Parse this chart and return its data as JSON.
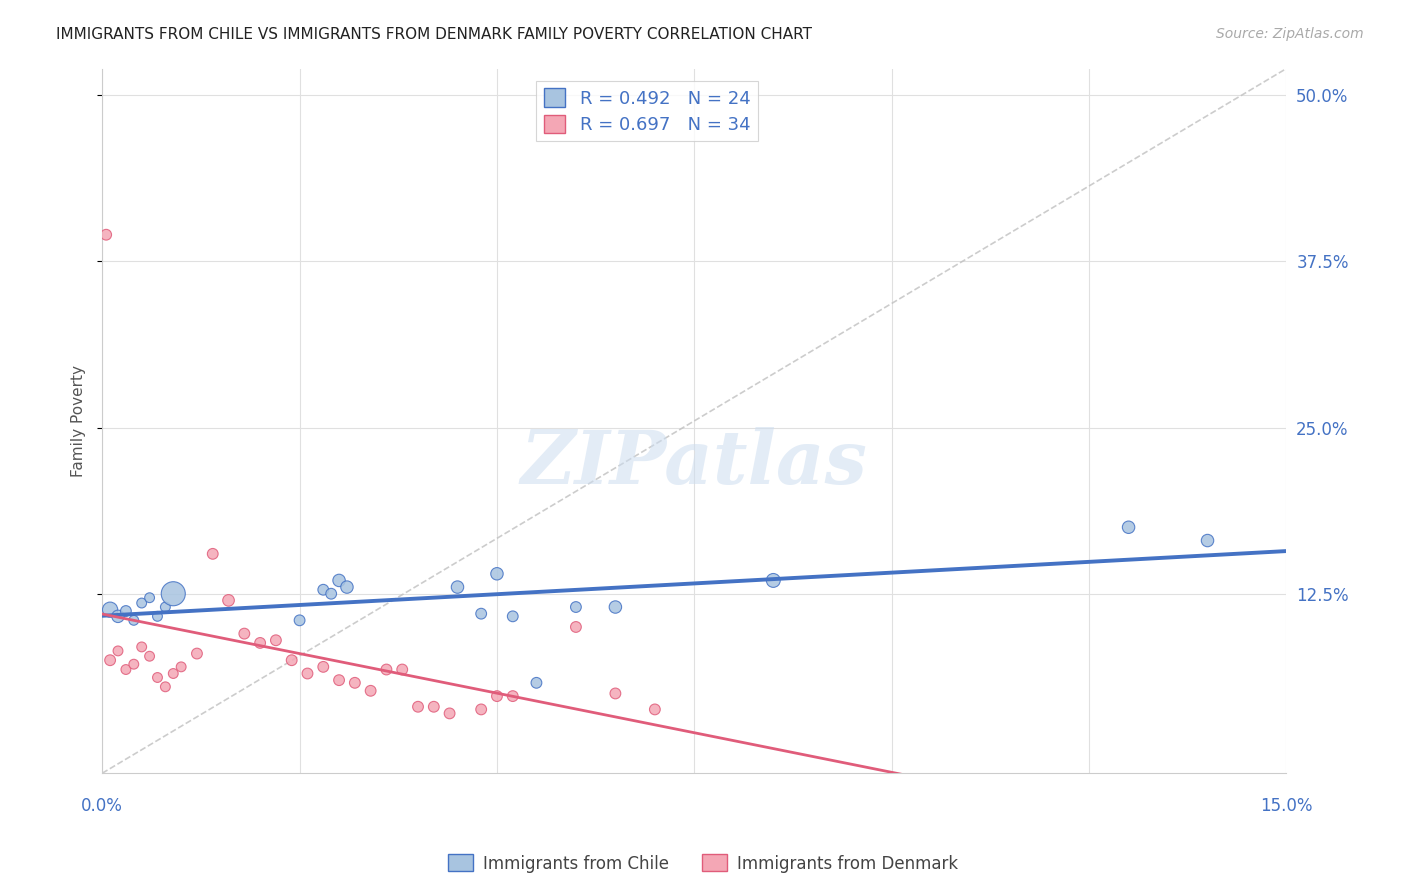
{
  "title": "IMMIGRANTS FROM CHILE VS IMMIGRANTS FROM DENMARK FAMILY POVERTY CORRELATION CHART",
  "source": "Source: ZipAtlas.com",
  "ylabel": "Family Poverty",
  "x_min": 0.0,
  "x_max": 0.15,
  "y_min": -0.01,
  "y_max": 0.52,
  "legend_chile": "R = 0.492   N = 24",
  "legend_denmark": "R = 0.697   N = 34",
  "chile_color": "#a8c4e0",
  "chile_line_color": "#4472c4",
  "denmark_color": "#f4a7b5",
  "denmark_line_color": "#e05c7a",
  "diagonal_color": "#c0c0c0",
  "chile_points": [
    [
      0.001,
      0.113
    ],
    [
      0.002,
      0.108
    ],
    [
      0.003,
      0.112
    ],
    [
      0.004,
      0.105
    ],
    [
      0.005,
      0.118
    ],
    [
      0.006,
      0.122
    ],
    [
      0.007,
      0.108
    ],
    [
      0.008,
      0.115
    ],
    [
      0.009,
      0.125
    ],
    [
      0.025,
      0.105
    ],
    [
      0.028,
      0.128
    ],
    [
      0.029,
      0.125
    ],
    [
      0.03,
      0.135
    ],
    [
      0.031,
      0.13
    ],
    [
      0.045,
      0.13
    ],
    [
      0.048,
      0.11
    ],
    [
      0.05,
      0.14
    ],
    [
      0.052,
      0.108
    ],
    [
      0.055,
      0.058
    ],
    [
      0.06,
      0.115
    ],
    [
      0.065,
      0.115
    ],
    [
      0.085,
      0.135
    ],
    [
      0.13,
      0.175
    ],
    [
      0.14,
      0.165
    ]
  ],
  "chile_sizes": [
    120,
    80,
    60,
    50,
    50,
    50,
    50,
    50,
    300,
    60,
    60,
    60,
    80,
    80,
    80,
    60,
    80,
    60,
    60,
    60,
    80,
    100,
    80,
    80
  ],
  "denmark_points": [
    [
      0.001,
      0.075
    ],
    [
      0.002,
      0.082
    ],
    [
      0.003,
      0.068
    ],
    [
      0.004,
      0.072
    ],
    [
      0.005,
      0.085
    ],
    [
      0.006,
      0.078
    ],
    [
      0.007,
      0.062
    ],
    [
      0.008,
      0.055
    ],
    [
      0.009,
      0.065
    ],
    [
      0.01,
      0.07
    ],
    [
      0.012,
      0.08
    ],
    [
      0.014,
      0.155
    ],
    [
      0.016,
      0.12
    ],
    [
      0.018,
      0.095
    ],
    [
      0.02,
      0.088
    ],
    [
      0.022,
      0.09
    ],
    [
      0.024,
      0.075
    ],
    [
      0.026,
      0.065
    ],
    [
      0.028,
      0.07
    ],
    [
      0.03,
      0.06
    ],
    [
      0.032,
      0.058
    ],
    [
      0.034,
      0.052
    ],
    [
      0.036,
      0.068
    ],
    [
      0.038,
      0.068
    ],
    [
      0.04,
      0.04
    ],
    [
      0.042,
      0.04
    ],
    [
      0.044,
      0.035
    ],
    [
      0.05,
      0.048
    ],
    [
      0.052,
      0.048
    ],
    [
      0.06,
      0.1
    ],
    [
      0.065,
      0.05
    ],
    [
      0.07,
      0.038
    ],
    [
      0.0005,
      0.395
    ],
    [
      0.048,
      0.038
    ]
  ],
  "denmark_sizes": [
    60,
    50,
    50,
    50,
    50,
    50,
    50,
    50,
    50,
    50,
    60,
    60,
    70,
    60,
    60,
    60,
    60,
    60,
    60,
    60,
    60,
    60,
    60,
    60,
    60,
    60,
    60,
    60,
    60,
    60,
    60,
    60,
    60,
    60
  ],
  "y_ticks": [
    0.125,
    0.25,
    0.375,
    0.5
  ],
  "y_tick_labels": [
    "12.5%",
    "25.0%",
    "37.5%",
    "50.0%"
  ],
  "x_ticks": [
    0.0,
    0.025,
    0.05,
    0.075,
    0.1,
    0.125,
    0.15
  ]
}
